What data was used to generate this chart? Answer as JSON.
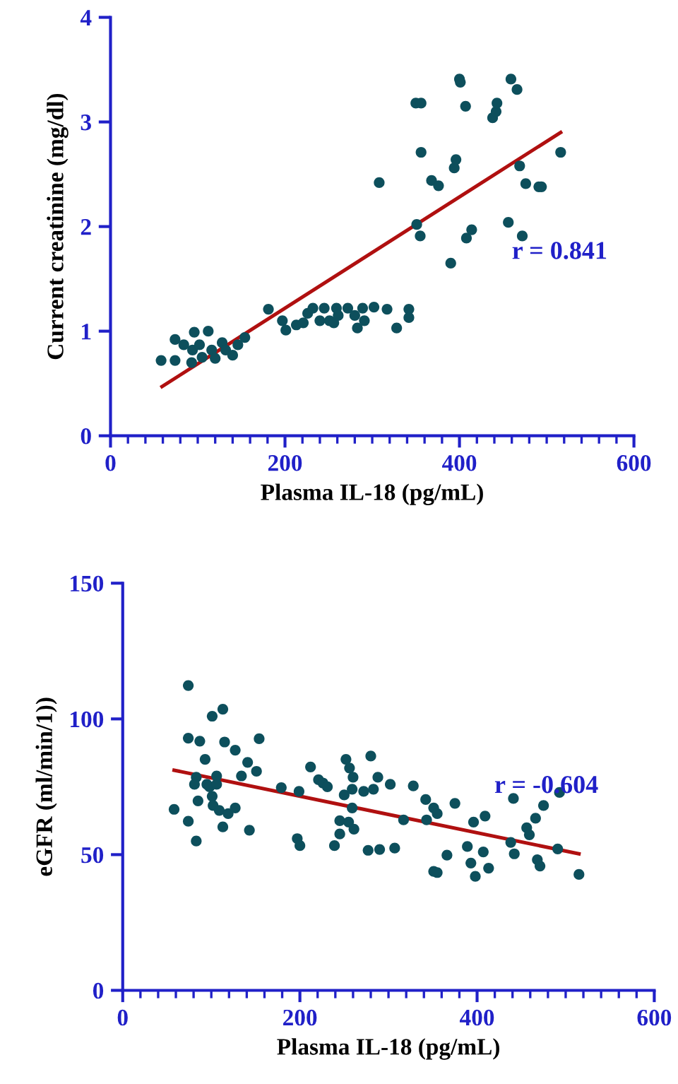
{
  "chart_data": [
    {
      "type": "scatter",
      "xlabel": "Plasma IL-18 (pg/mL)",
      "ylabel": "Current creatinine (mg/dl)",
      "xlim": [
        0,
        600
      ],
      "ylim": [
        0,
        4
      ],
      "xticks": [
        0,
        200,
        400,
        600
      ],
      "yticks": [
        0,
        1,
        2,
        3,
        4
      ],
      "grid": false,
      "annotations": [
        "r = 0.841"
      ],
      "series": [
        {
          "marker": "circle",
          "color": "#0d4f5c",
          "x": [
            58,
            74,
            74,
            84,
            94,
            96,
            93,
            102,
            105,
            112,
            116,
            120,
            128,
            132,
            140,
            146,
            154,
            181,
            197,
            201,
            213,
            221,
            226,
            232,
            240,
            245,
            251,
            256,
            259,
            261,
            272,
            280,
            283,
            289,
            291,
            302,
            317,
            328,
            342,
            342,
            308,
            351,
            355,
            350,
            356,
            356,
            368,
            376,
            390,
            394,
            396,
            400,
            401,
            407,
            408,
            414,
            438,
            442,
            443,
            456,
            459,
            466,
            469,
            472,
            476,
            491,
            494,
            516
          ],
          "values": [
            0.72,
            0.92,
            0.72,
            0.87,
            0.82,
            0.99,
            0.7,
            0.87,
            0.75,
            1.0,
            0.82,
            0.74,
            0.89,
            0.82,
            0.77,
            0.87,
            0.94,
            1.21,
            1.1,
            1.01,
            1.06,
            1.08,
            1.17,
            1.22,
            1.1,
            1.22,
            1.1,
            1.08,
            1.22,
            1.15,
            1.22,
            1.15,
            1.03,
            1.22,
            1.1,
            1.23,
            1.21,
            1.03,
            1.21,
            1.13,
            2.42,
            2.02,
            1.91,
            3.18,
            3.18,
            2.71,
            2.44,
            2.39,
            1.65,
            2.56,
            2.64,
            3.41,
            3.38,
            3.15,
            1.89,
            1.97,
            3.04,
            3.1,
            3.18,
            2.04,
            3.41,
            3.31,
            2.58,
            1.91,
            2.41,
            2.38,
            2.38,
            2.71
          ]
        },
        {
          "type": "line",
          "color": "#b01010",
          "x": [
            59,
            516
          ],
          "values": [
            0.47,
            2.9
          ]
        }
      ]
    },
    {
      "type": "scatter",
      "xlabel": "Plasma IL-18 (pg/mL)",
      "ylabel": "eGFR (ml/min/1))",
      "xlim": [
        0,
        600
      ],
      "ylim": [
        0,
        150
      ],
      "xticks": [
        0,
        200,
        400,
        600
      ],
      "yticks": [
        0,
        50,
        100,
        150
      ],
      "grid": false,
      "annotations": [
        "r = -0.604"
      ],
      "series": [
        {
          "marker": "circle",
          "color": "#0d4f5c",
          "x": [
            58,
            74,
            74,
            74,
            83,
            87,
            83,
            81,
            85,
            93,
            95,
            98,
            101,
            101,
            102,
            106,
            106,
            109,
            113,
            113,
            115,
            119,
            127,
            127,
            134,
            141,
            143,
            151,
            154,
            179,
            197,
            200,
            199,
            212,
            221,
            226,
            231,
            239,
            245,
            245,
            250,
            252,
            255,
            256,
            259,
            259,
            260,
            261,
            272,
            277,
            280,
            283,
            288,
            290,
            302,
            307,
            317,
            328,
            342,
            343,
            351,
            355,
            355,
            351,
            366,
            375,
            389,
            393,
            396,
            398,
            407,
            409,
            413,
            438,
            441,
            442,
            456,
            459,
            466,
            468,
            471,
            475,
            491,
            493,
            515
          ],
          "values": [
            66.7,
            112.3,
            92.9,
            62.3,
            55.0,
            91.8,
            78.5,
            75.9,
            69.8,
            85.1,
            75.9,
            75.0,
            71.5,
            101.0,
            68.1,
            79.0,
            75.9,
            66.3,
            103.6,
            60.2,
            91.5,
            65.1,
            67.2,
            88.5,
            79.0,
            84.0,
            59.0,
            80.7,
            92.7,
            74.7,
            55.9,
            53.3,
            73.3,
            82.3,
            77.6,
            76.4,
            75.0,
            53.3,
            57.6,
            62.5,
            72.0,
            85.1,
            62.0,
            81.9,
            67.2,
            74.1,
            78.5,
            59.4,
            73.3,
            51.6,
            86.3,
            74.1,
            78.5,
            51.9,
            75.9,
            52.4,
            62.8,
            75.3,
            70.3,
            62.8,
            67.2,
            65.1,
            43.4,
            43.8,
            49.8,
            68.9,
            53.0,
            46.9,
            62.0,
            42.0,
            51.0,
            64.2,
            45.0,
            54.5,
            70.7,
            50.3,
            59.9,
            57.3,
            63.4,
            48.1,
            45.8,
            68.1,
            52.1,
            72.9,
            42.7
          ]
        },
        {
          "type": "line",
          "color": "#b01010",
          "x": [
            58,
            515
          ],
          "values": [
            81.1,
            50.3
          ]
        }
      ]
    }
  ]
}
